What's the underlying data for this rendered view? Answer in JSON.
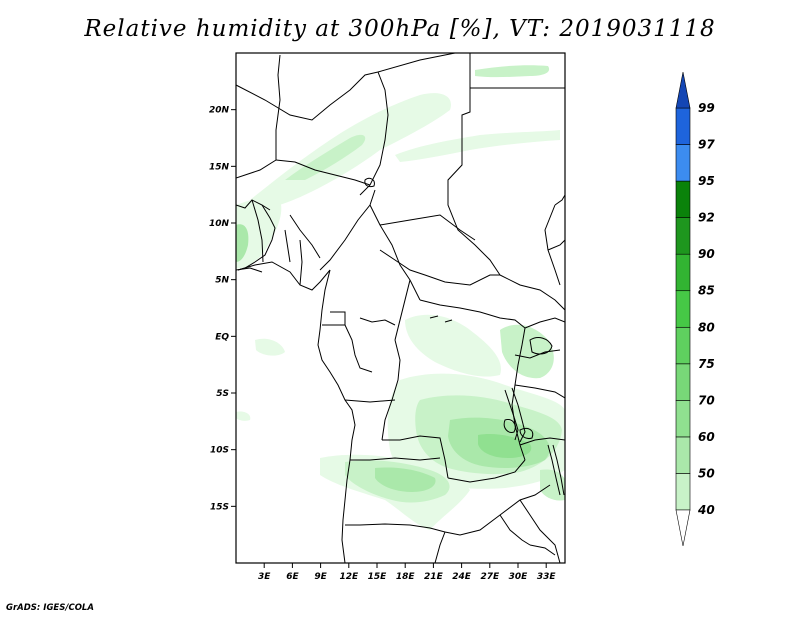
{
  "title": "Relative humidity at 300hPa [%], VT: 2019031118",
  "footer": "GrADS: IGES/COLA",
  "map": {
    "lon_range": [
      0,
      35
    ],
    "lat_range": [
      -20,
      25
    ],
    "lat_ticks": [
      {
        "value": 20,
        "label": "20N"
      },
      {
        "value": 15,
        "label": "15N"
      },
      {
        "value": 10,
        "label": "10N"
      },
      {
        "value": 5,
        "label": "5N"
      },
      {
        "value": 0,
        "label": "EQ"
      },
      {
        "value": -5,
        "label": "5S"
      },
      {
        "value": -10,
        "label": "10S"
      },
      {
        "value": -15,
        "label": "15S"
      }
    ],
    "lon_ticks": [
      {
        "value": 3,
        "label": "3E"
      },
      {
        "value": 6,
        "label": "6E"
      },
      {
        "value": 9,
        "label": "9E"
      },
      {
        "value": 12,
        "label": "12E"
      },
      {
        "value": 15,
        "label": "15E"
      },
      {
        "value": 18,
        "label": "18E"
      },
      {
        "value": 21,
        "label": "21E"
      },
      {
        "value": 24,
        "label": "24E"
      },
      {
        "value": 27,
        "label": "27E"
      },
      {
        "value": 30,
        "label": "30E"
      },
      {
        "value": 33,
        "label": "33E"
      }
    ]
  },
  "colorbar": {
    "levels": [
      "40",
      "50",
      "60",
      "70",
      "75",
      "80",
      "85",
      "90",
      "92",
      "95",
      "97",
      "99"
    ],
    "colors": [
      "#e6fae6",
      "#c8f2c8",
      "#aae8aa",
      "#90e090",
      "#78d878",
      "#5fd05f",
      "#46c846",
      "#32b432",
      "#1e961e",
      "#0a820a",
      "#3c8cf0",
      "#1e64dc",
      "#1446b4"
    ]
  },
  "humidity_colors": {
    "h40": "#e6fae6",
    "h50": "#c8f2c8",
    "h60": "#aae8aa",
    "h70": "#90e090",
    "h75": "#78d878"
  }
}
